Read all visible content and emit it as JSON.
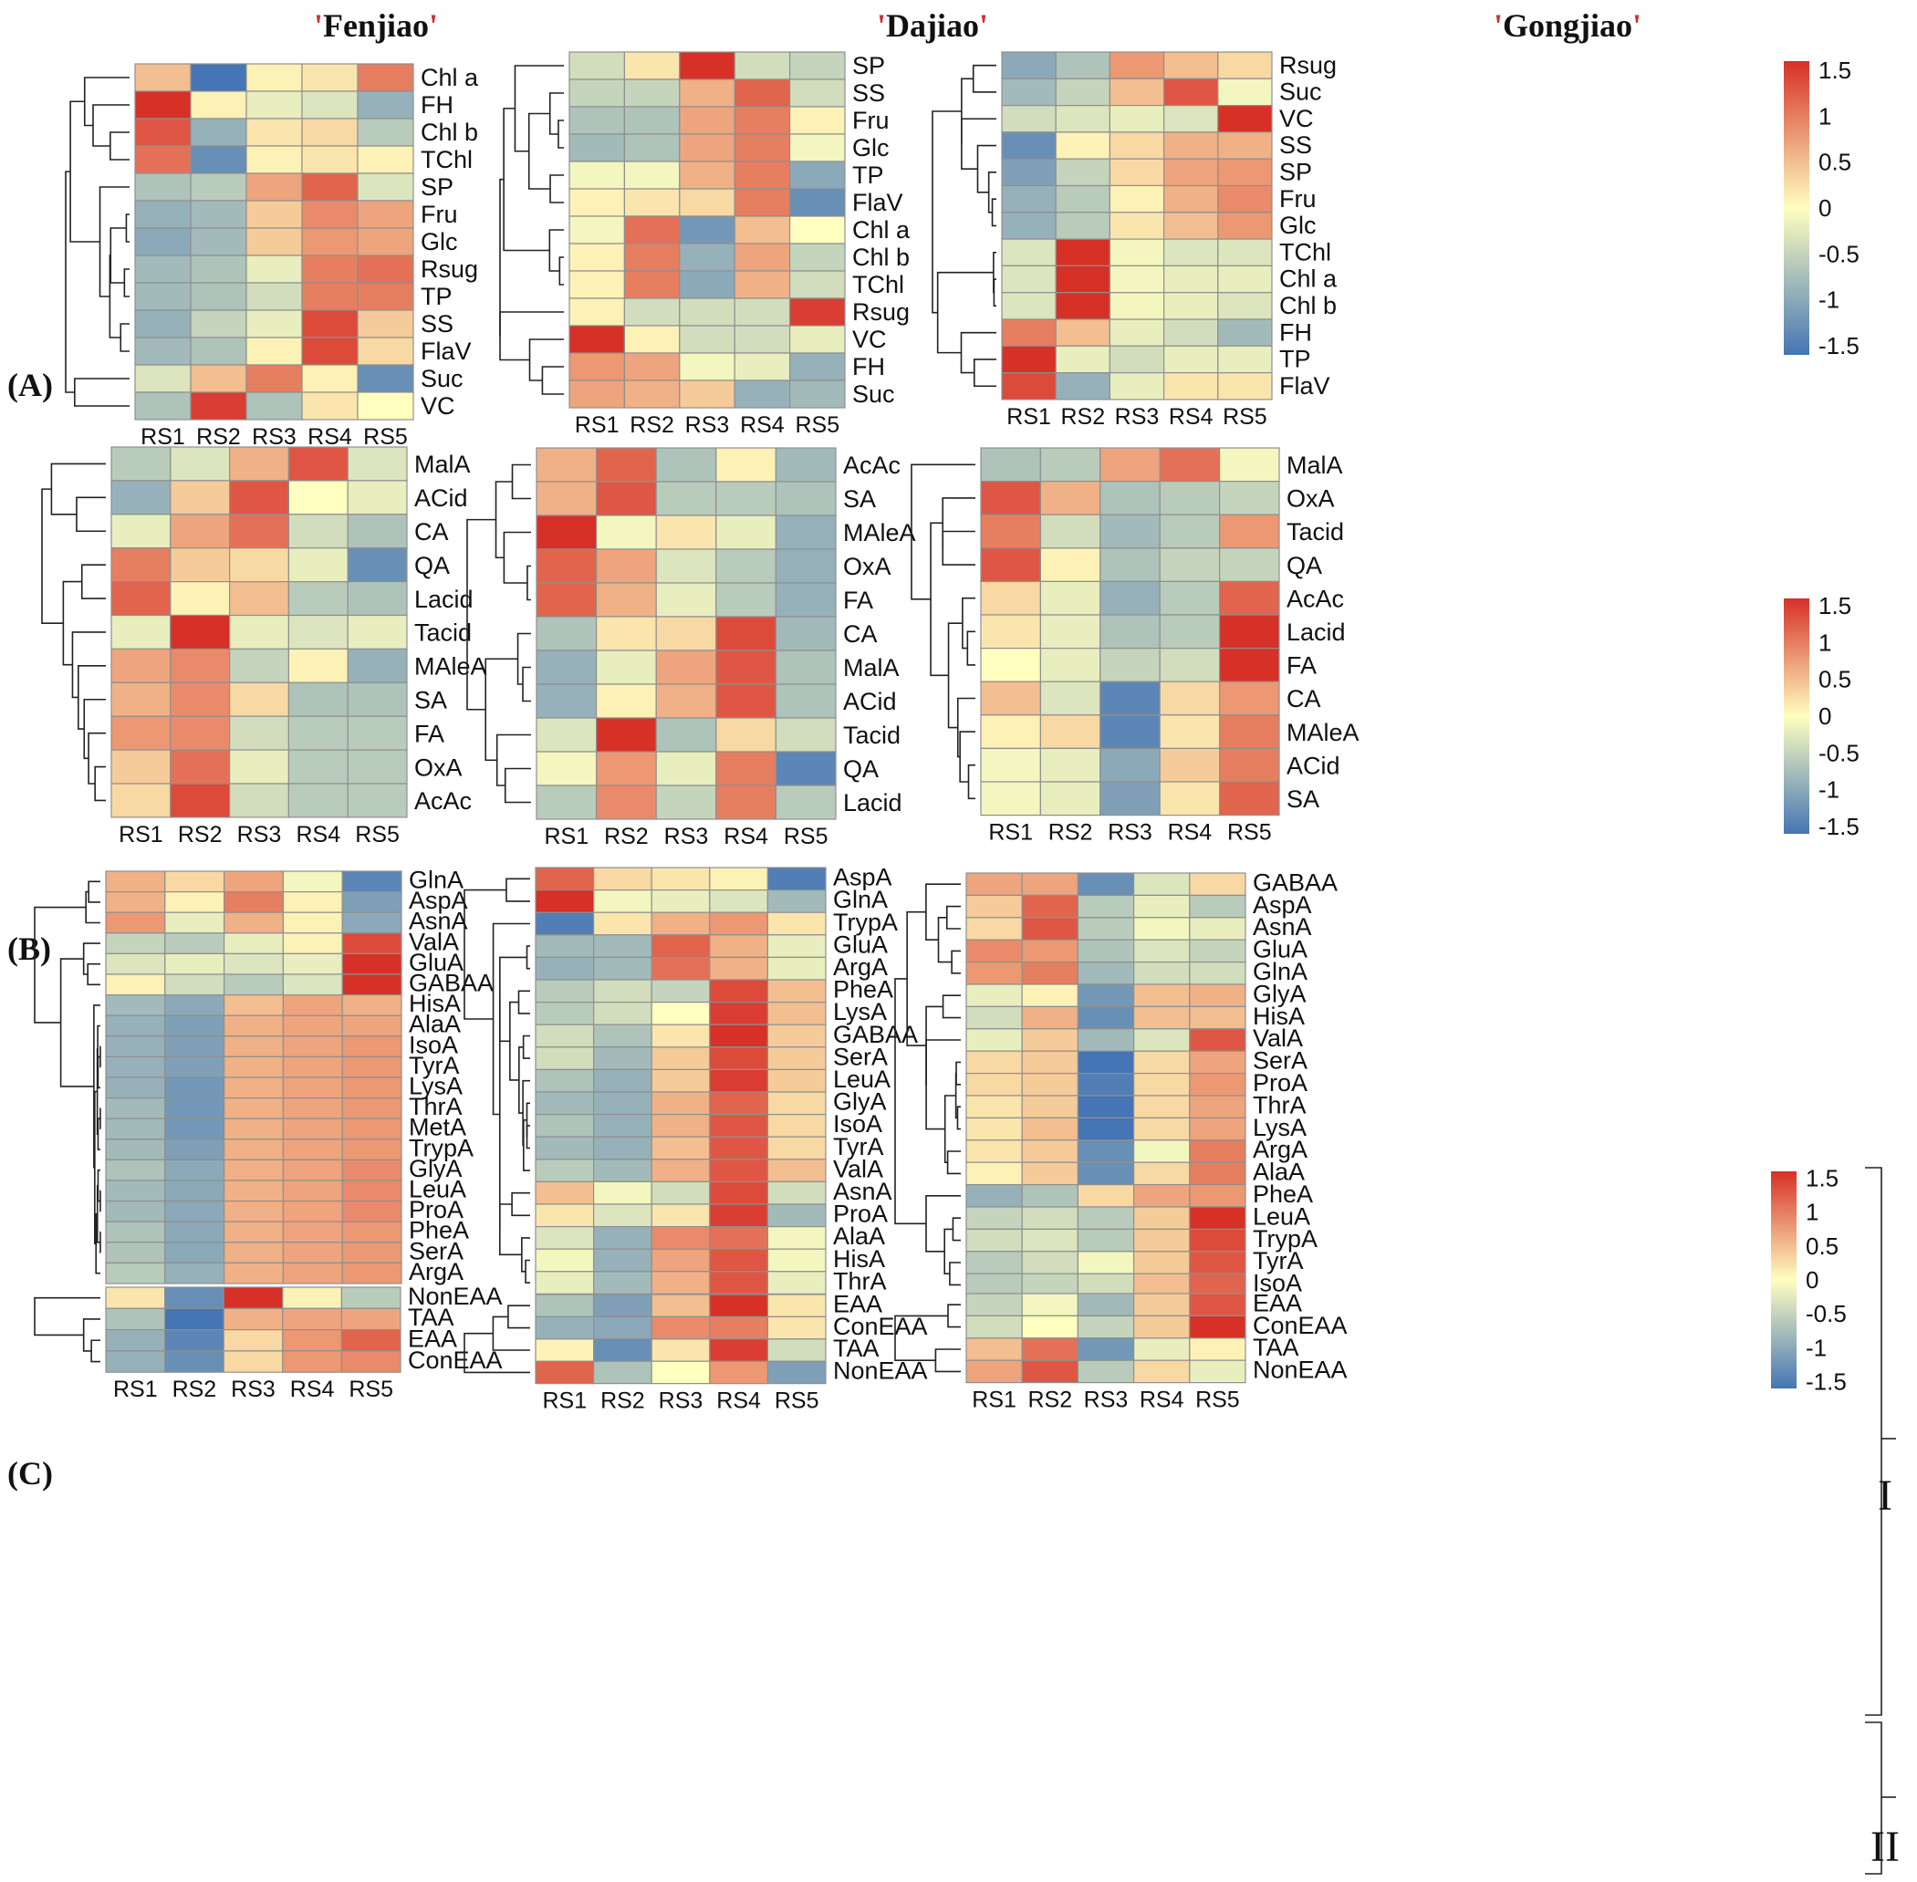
{
  "figure": {
    "titles": [
      "Fenjiao",
      "Dajiao",
      "Gongjiao"
    ],
    "panel_labels": [
      "(A)",
      "(B)",
      "(C)"
    ],
    "group_labels": [
      "I",
      "II"
    ],
    "legend_ticks": [
      "1.5",
      "1",
      "0.5",
      "0",
      "-0.5",
      "-1",
      "-1.5"
    ],
    "colors": {
      "low": "#4575b4",
      "mid": "#ffffbf",
      "high": "#d73027"
    }
  },
  "chart_data": [
    {
      "type": "heatmap",
      "panel": "A",
      "cultivar": "Fenjiao",
      "columns": [
        "RS1",
        "RS2",
        "RS3",
        "RS4",
        "RS5"
      ],
      "rows": [
        "Chl a",
        "FH",
        "Chl b",
        "TChl",
        "SP",
        "Fru",
        "Glc",
        "Rsug",
        "TP",
        "SS",
        "FlaV",
        "Suc",
        "VC"
      ],
      "values": [
        [
          0.5,
          -1.6,
          0.1,
          0.2,
          1.0
        ],
        [
          1.6,
          0.1,
          -0.2,
          -0.3,
          -0.9
        ],
        [
          1.3,
          -0.9,
          0.2,
          0.3,
          -0.6
        ],
        [
          1.1,
          -1.3,
          0.1,
          0.2,
          0.1
        ],
        [
          -0.7,
          -0.6,
          0.7,
          1.2,
          -0.3
        ],
        [
          -0.9,
          -0.8,
          0.4,
          0.9,
          0.7
        ],
        [
          -1.0,
          -0.8,
          0.4,
          0.8,
          0.7
        ],
        [
          -0.8,
          -0.7,
          -0.2,
          1.0,
          1.1
        ],
        [
          -0.8,
          -0.7,
          -0.4,
          1.0,
          1.0
        ],
        [
          -0.9,
          -0.5,
          -0.2,
          1.4,
          0.4
        ],
        [
          -0.8,
          -0.7,
          0.1,
          1.4,
          0.3
        ],
        [
          -0.3,
          0.5,
          1.0,
          0.1,
          -1.3
        ],
        [
          -0.7,
          1.5,
          -0.7,
          0.2,
          0.0
        ]
      ]
    },
    {
      "type": "heatmap",
      "panel": "A",
      "cultivar": "Dajiao",
      "columns": [
        "RS1",
        "RS2",
        "RS3",
        "RS4",
        "RS5"
      ],
      "rows": [
        "SP",
        "SS",
        "Fru",
        "Glc",
        "TP",
        "FlaV",
        "Chl a",
        "Chl b",
        "TChl",
        "Rsug",
        "VC",
        "FH",
        "Suc"
      ],
      "values": [
        [
          -0.4,
          0.2,
          1.6,
          -0.4,
          -0.5
        ],
        [
          -0.5,
          -0.5,
          0.6,
          1.2,
          -0.4
        ],
        [
          -0.7,
          -0.7,
          0.7,
          1.0,
          0.1
        ],
        [
          -0.8,
          -0.7,
          0.7,
          1.0,
          -0.1
        ],
        [
          -0.1,
          -0.1,
          0.6,
          1.0,
          -1.0
        ],
        [
          0.1,
          0.2,
          0.3,
          1.0,
          -1.3
        ],
        [
          -0.1,
          1.1,
          -1.2,
          0.5,
          0.0
        ],
        [
          0.1,
          1.0,
          -0.9,
          0.7,
          -0.5
        ],
        [
          0.1,
          1.0,
          -1.0,
          0.6,
          -0.4
        ],
        [
          0.1,
          -0.4,
          -0.4,
          -0.4,
          1.5
        ],
        [
          1.6,
          0.1,
          -0.4,
          -0.4,
          -0.2
        ],
        [
          0.8,
          0.7,
          -0.1,
          -0.2,
          -0.9
        ],
        [
          0.7,
          0.6,
          0.4,
          -0.9,
          -0.8
        ]
      ]
    },
    {
      "type": "heatmap",
      "panel": "A",
      "cultivar": "Gongjiao",
      "columns": [
        "RS1",
        "RS2",
        "RS3",
        "RS4",
        "RS5"
      ],
      "rows": [
        "Rsug",
        "Suc",
        "VC",
        "SS",
        "SP",
        "Fru",
        "Glc",
        "TChl",
        "Chl a",
        "Chl b",
        "FH",
        "TP",
        "FlaV"
      ],
      "values": [
        [
          -1.0,
          -0.7,
          0.8,
          0.5,
          0.3
        ],
        [
          -0.8,
          -0.5,
          0.5,
          1.3,
          -0.1
        ],
        [
          -0.4,
          -0.3,
          -0.2,
          -0.3,
          1.6
        ],
        [
          -1.3,
          0.1,
          0.3,
          0.6,
          0.6
        ],
        [
          -1.1,
          -0.5,
          0.3,
          0.7,
          0.8
        ],
        [
          -0.9,
          -0.6,
          0.1,
          0.6,
          0.9
        ],
        [
          -0.9,
          -0.6,
          0.2,
          0.5,
          0.8
        ],
        [
          -0.3,
          1.6,
          -0.1,
          -0.3,
          -0.3
        ],
        [
          -0.3,
          1.6,
          -0.1,
          -0.2,
          -0.2
        ],
        [
          -0.3,
          1.6,
          -0.1,
          -0.2,
          -0.3
        ],
        [
          1.0,
          0.5,
          -0.2,
          -0.4,
          -0.8
        ],
        [
          1.6,
          -0.2,
          -0.4,
          -0.2,
          -0.2
        ],
        [
          1.4,
          -0.9,
          -0.2,
          0.2,
          0.2
        ]
      ]
    },
    {
      "type": "heatmap",
      "panel": "B",
      "cultivar": "Fenjiao",
      "columns": [
        "RS1",
        "RS2",
        "RS3",
        "RS4",
        "RS5"
      ],
      "rows": [
        "MalA",
        "ACid",
        "CA",
        "QA",
        "Lacid",
        "Tacid",
        "MAleA",
        "SA",
        "FA",
        "OxA",
        "AcAc"
      ],
      "values": [
        [
          -0.6,
          -0.3,
          0.6,
          1.3,
          -0.3
        ],
        [
          -0.9,
          0.4,
          1.3,
          0.0,
          -0.2
        ],
        [
          -0.2,
          0.7,
          1.1,
          -0.4,
          -0.7
        ],
        [
          1.0,
          0.4,
          0.3,
          -0.2,
          -1.3
        ],
        [
          1.2,
          0.1,
          0.5,
          -0.6,
          -0.7
        ],
        [
          -0.2,
          1.6,
          -0.2,
          -0.3,
          -0.2
        ],
        [
          0.7,
          0.9,
          -0.5,
          0.1,
          -0.9
        ],
        [
          0.6,
          0.9,
          0.3,
          -0.7,
          -0.7
        ],
        [
          0.8,
          0.9,
          -0.4,
          -0.6,
          -0.6
        ],
        [
          0.4,
          1.1,
          -0.2,
          -0.6,
          -0.6
        ],
        [
          0.3,
          1.4,
          -0.4,
          -0.6,
          -0.6
        ]
      ]
    },
    {
      "type": "heatmap",
      "panel": "B",
      "cultivar": "Dajiao",
      "columns": [
        "RS1",
        "RS2",
        "RS3",
        "RS4",
        "RS5"
      ],
      "rows": [
        "AcAc",
        "SA",
        "MAleA",
        "OxA",
        "FA",
        "CA",
        "MalA",
        "ACid",
        "Tacid",
        "QA",
        "Lacid"
      ],
      "values": [
        [
          0.6,
          1.2,
          -0.7,
          0.1,
          -0.8
        ],
        [
          0.6,
          1.3,
          -0.6,
          -0.6,
          -0.7
        ],
        [
          1.6,
          -0.1,
          0.2,
          -0.2,
          -0.9
        ],
        [
          1.2,
          0.7,
          -0.3,
          -0.6,
          -0.9
        ],
        [
          1.2,
          0.6,
          -0.2,
          -0.6,
          -0.9
        ],
        [
          -0.7,
          0.2,
          0.3,
          1.4,
          -0.8
        ],
        [
          -0.9,
          -0.2,
          0.7,
          1.3,
          -0.7
        ],
        [
          -0.9,
          0.1,
          0.6,
          1.3,
          -0.7
        ],
        [
          -0.3,
          1.6,
          -0.7,
          0.3,
          -0.4
        ],
        [
          -0.1,
          0.8,
          -0.2,
          1.0,
          -1.4
        ],
        [
          -0.6,
          0.9,
          -0.5,
          1.0,
          -0.6
        ]
      ]
    },
    {
      "type": "heatmap",
      "panel": "B",
      "cultivar": "Gongjiao",
      "columns": [
        "RS1",
        "RS2",
        "RS3",
        "RS4",
        "RS5"
      ],
      "rows": [
        "MalA",
        "OxA",
        "Tacid",
        "QA",
        "AcAc",
        "Lacid",
        "FA",
        "CA",
        "MAleA",
        "ACid",
        "SA"
      ],
      "values": [
        [
          -0.7,
          -0.6,
          0.7,
          1.1,
          -0.1
        ],
        [
          1.3,
          0.6,
          -0.7,
          -0.6,
          -0.5
        ],
        [
          1.0,
          -0.4,
          -0.8,
          -0.6,
          0.8
        ],
        [
          1.3,
          0.1,
          -0.7,
          -0.5,
          -0.5
        ],
        [
          0.3,
          -0.2,
          -0.9,
          -0.6,
          1.2
        ],
        [
          0.2,
          -0.2,
          -0.7,
          -0.6,
          1.6
        ],
        [
          0.0,
          -0.2,
          -0.5,
          -0.4,
          1.6
        ],
        [
          0.5,
          -0.3,
          -1.4,
          0.3,
          0.8
        ],
        [
          0.1,
          0.3,
          -1.4,
          0.2,
          1.0
        ],
        [
          -0.1,
          -0.2,
          -1.0,
          0.4,
          1.0
        ],
        [
          -0.1,
          -0.2,
          -1.1,
          0.2,
          1.2
        ]
      ]
    },
    {
      "type": "heatmap",
      "panel": "C",
      "cultivar": "Fenjiao",
      "columns": [
        "RS1",
        "RS2",
        "RS3",
        "RS4",
        "RS5"
      ],
      "rows": [
        "GlnA",
        "AspA",
        "AsnA",
        "ValA",
        "GluA",
        "GABAA",
        "HisA",
        "AlaA",
        "IsoA",
        "TyrA",
        "LysA",
        "ThrA",
        "MetA",
        "TrypA",
        "GlyA",
        "LeuA",
        "ProA",
        "PheA",
        "SerA",
        "ArgA"
      ],
      "values": [
        [
          0.6,
          0.3,
          0.7,
          -0.1,
          -1.4
        ],
        [
          0.6,
          0.1,
          1.0,
          0.1,
          -1.1
        ],
        [
          0.8,
          -0.2,
          0.6,
          0.1,
          -1.0
        ],
        [
          -0.5,
          -0.6,
          -0.2,
          0.1,
          1.4
        ],
        [
          -0.3,
          -0.2,
          -0.3,
          -0.2,
          1.6
        ],
        [
          0.1,
          -0.4,
          -0.6,
          -0.3,
          1.6
        ],
        [
          -0.8,
          -1.0,
          0.5,
          0.7,
          0.6
        ],
        [
          -0.9,
          -1.1,
          0.6,
          0.7,
          0.7
        ],
        [
          -0.9,
          -1.1,
          0.6,
          0.7,
          0.8
        ],
        [
          -0.9,
          -1.1,
          0.6,
          0.7,
          0.8
        ],
        [
          -0.9,
          -1.2,
          0.6,
          0.7,
          0.8
        ],
        [
          -0.8,
          -1.2,
          0.6,
          0.7,
          0.8
        ],
        [
          -0.8,
          -1.2,
          0.6,
          0.7,
          0.8
        ],
        [
          -0.8,
          -1.1,
          0.6,
          0.7,
          0.8
        ],
        [
          -0.7,
          -1.0,
          0.6,
          0.7,
          0.9
        ],
        [
          -0.8,
          -1.0,
          0.6,
          0.7,
          0.9
        ],
        [
          -0.8,
          -1.0,
          0.6,
          0.7,
          0.9
        ],
        [
          -0.7,
          -1.0,
          0.6,
          0.7,
          0.8
        ],
        [
          -0.7,
          -1.0,
          0.6,
          0.7,
          0.8
        ],
        [
          -0.6,
          -0.9,
          0.6,
          0.7,
          0.8
        ]
      ]
    },
    {
      "type": "heatmap",
      "panel": "C",
      "cultivar": "Fenjiao",
      "columns": [
        "RS1",
        "RS2",
        "RS3",
        "RS4",
        "RS5"
      ],
      "rows": [
        "NonEAA",
        "TAA",
        "EAA",
        "ConEAA"
      ],
      "values": [
        [
          0.2,
          -1.3,
          1.6,
          0.1,
          -0.6
        ],
        [
          -0.7,
          -1.6,
          0.6,
          0.7,
          0.7
        ],
        [
          -0.9,
          -1.4,
          0.3,
          0.8,
          1.2
        ],
        [
          -0.9,
          -1.3,
          0.3,
          0.8,
          0.9
        ]
      ]
    },
    {
      "type": "heatmap",
      "panel": "C",
      "cultivar": "Dajiao",
      "columns": [
        "RS1",
        "RS2",
        "RS3",
        "RS4",
        "RS5"
      ],
      "rows": [
        "AspA",
        "GlnA",
        "TrypA",
        "GluA",
        "ArgA",
        "PheA",
        "LysA",
        "GABAA",
        "SerA",
        "LeuA",
        "GlyA",
        "IsoA",
        "TyrA",
        "ValA",
        "AsnA",
        "ProA",
        "AlaA",
        "HisA",
        "ThrA"
      ],
      "values": [
        [
          1.2,
          0.3,
          0.2,
          0.1,
          -1.5
        ],
        [
          1.6,
          -0.1,
          -0.2,
          -0.3,
          -0.8
        ],
        [
          -1.5,
          0.2,
          0.6,
          0.8,
          0.2
        ],
        [
          -0.8,
          -0.8,
          1.2,
          0.6,
          -0.2
        ],
        [
          -0.9,
          -0.8,
          1.1,
          0.6,
          -0.2
        ],
        [
          -0.6,
          -0.4,
          -0.5,
          1.4,
          0.5
        ],
        [
          -0.6,
          -0.4,
          0.0,
          1.5,
          0.5
        ],
        [
          -0.4,
          -0.7,
          0.2,
          1.6,
          0.4
        ],
        [
          -0.4,
          -0.8,
          0.4,
          1.4,
          0.4
        ],
        [
          -0.7,
          -0.9,
          0.4,
          1.5,
          0.4
        ],
        [
          -0.8,
          -0.9,
          0.6,
          1.2,
          0.3
        ],
        [
          -0.7,
          -0.9,
          0.6,
          1.3,
          0.3
        ],
        [
          -0.8,
          -0.9,
          0.5,
          1.3,
          0.3
        ],
        [
          -0.6,
          -0.8,
          0.6,
          1.3,
          0.5
        ],
        [
          0.5,
          -0.1,
          -0.4,
          1.4,
          -0.4
        ],
        [
          0.2,
          -0.3,
          0.2,
          1.5,
          -0.8
        ],
        [
          -0.3,
          -0.9,
          0.9,
          1.1,
          -0.1
        ],
        [
          -0.1,
          -0.9,
          0.7,
          1.3,
          -0.1
        ],
        [
          -0.2,
          -0.8,
          0.6,
          1.3,
          -0.2
        ]
      ]
    },
    {
      "type": "heatmap",
      "panel": "C",
      "cultivar": "Dajiao",
      "columns": [
        "RS1",
        "RS2",
        "RS3",
        "RS4",
        "RS5"
      ],
      "rows": [
        "EAA",
        "ConEAA",
        "TAA",
        "NonEAA"
      ],
      "values": [
        [
          -0.7,
          -1.1,
          0.5,
          1.6,
          0.2
        ],
        [
          -0.9,
          -1.0,
          0.9,
          1.0,
          0.2
        ],
        [
          0.1,
          -1.3,
          0.2,
          1.5,
          -0.4
        ],
        [
          1.2,
          -0.7,
          0.0,
          0.8,
          -1.1
        ]
      ]
    },
    {
      "type": "heatmap",
      "panel": "C",
      "cultivar": "Gongjiao",
      "columns": [
        "RS1",
        "RS2",
        "RS3",
        "RS4",
        "RS5"
      ],
      "rows": [
        "GABAA",
        "AspA",
        "AsnA",
        "GluA",
        "GlnA",
        "GlyA",
        "HisA",
        "ValA",
        "SerA",
        "ProA",
        "ThrA",
        "LysA",
        "ArgA",
        "AlaA",
        "PheA",
        "LeuA",
        "TrypA",
        "TyrA",
        "IsoA"
      ],
      "values": [
        [
          0.7,
          0.7,
          -1.3,
          -0.3,
          0.3
        ],
        [
          0.4,
          1.2,
          -0.6,
          -0.2,
          -0.6
        ],
        [
          0.3,
          1.3,
          -0.6,
          -0.1,
          -0.2
        ],
        [
          0.9,
          0.8,
          -0.7,
          -0.3,
          -0.5
        ],
        [
          0.8,
          1.0,
          -0.8,
          -0.4,
          -0.4
        ],
        [
          -0.2,
          0.1,
          -1.2,
          0.5,
          0.6
        ],
        [
          -0.4,
          0.6,
          -1.3,
          0.5,
          0.5
        ],
        [
          -0.2,
          0.4,
          -0.8,
          -0.3,
          1.3
        ],
        [
          0.3,
          0.4,
          -1.6,
          0.3,
          0.7
        ],
        [
          0.3,
          0.4,
          -1.5,
          0.3,
          0.8
        ],
        [
          0.2,
          0.4,
          -1.6,
          0.3,
          0.7
        ],
        [
          0.2,
          0.5,
          -1.6,
          0.3,
          0.7
        ],
        [
          0.2,
          0.4,
          -1.3,
          -0.1,
          1.0
        ],
        [
          0.1,
          0.4,
          -1.3,
          0.3,
          1.0
        ],
        [
          -0.9,
          -0.7,
          0.3,
          0.7,
          0.8
        ],
        [
          -0.5,
          -0.4,
          -0.6,
          0.4,
          1.6
        ],
        [
          -0.4,
          -0.3,
          -0.6,
          0.4,
          1.4
        ],
        [
          -0.6,
          -0.4,
          -0.1,
          0.4,
          1.3
        ],
        [
          -0.6,
          -0.5,
          -0.4,
          0.5,
          1.2
        ]
      ]
    },
    {
      "type": "heatmap",
      "panel": "C",
      "cultivar": "Gongjiao",
      "columns": [
        "RS1",
        "RS2",
        "RS3",
        "RS4",
        "RS5"
      ],
      "rows": [
        "EAA",
        "ConEAA",
        "TAA",
        "NonEAA"
      ],
      "values": [
        [
          -0.5,
          -0.1,
          -0.8,
          0.4,
          1.3
        ],
        [
          -0.4,
          0.0,
          -0.5,
          0.4,
          1.6
        ],
        [
          0.5,
          1.1,
          -1.2,
          -0.2,
          0.1
        ],
        [
          0.7,
          1.3,
          -0.6,
          0.3,
          -0.2
        ]
      ]
    }
  ]
}
